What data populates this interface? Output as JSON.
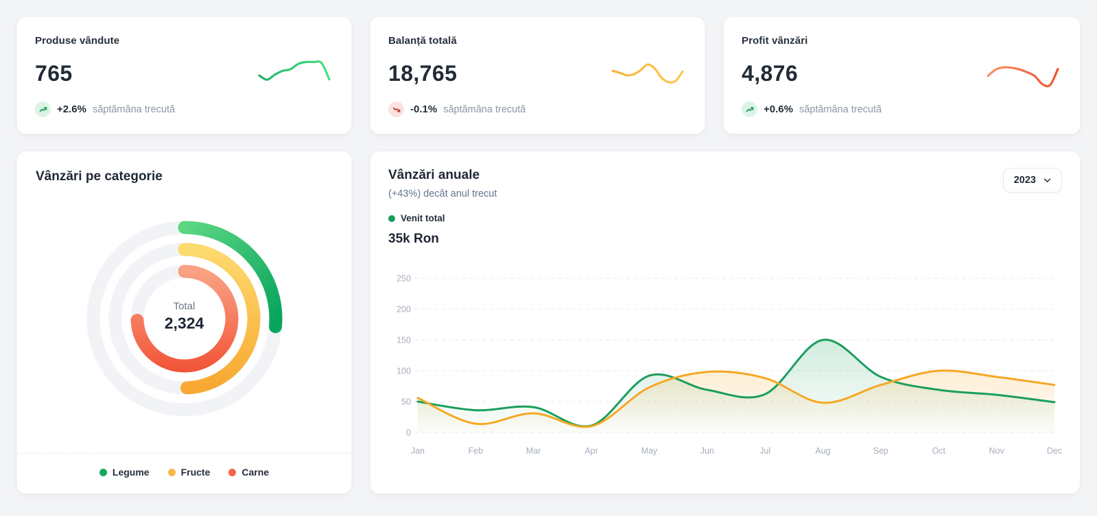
{
  "page": {
    "background": "#f3f4f6"
  },
  "stat_cards": [
    {
      "title": "Produse vândute",
      "value": "765",
      "delta": "+2.6%",
      "note": "săptămâna trecută",
      "direction": "up"
    },
    {
      "title": "Balanță totală",
      "value": "18,765",
      "delta": "-0.1%",
      "note": "săptămâna trecută",
      "direction": "down"
    },
    {
      "title": "Profit vânzări",
      "value": "4,876",
      "delta": "+0.6%",
      "note": "săptămâna trecută",
      "direction": "up"
    }
  ],
  "category_card": {
    "title": "Vânzări pe categorie",
    "center_label": "Total",
    "center_value": "2,324",
    "legend": [
      {
        "label": "Legume",
        "color": "#16a75c"
      },
      {
        "label": "Fructe",
        "color": "#fbb742"
      },
      {
        "label": "Carne",
        "color": "#f4654a"
      }
    ]
  },
  "annual_card": {
    "title": "Vânzări anuale",
    "subtitle": "(+43%) decât anul trecut",
    "legend_label": "Venit total",
    "big_value": "35k Ron",
    "year": "2023"
  },
  "colors": {
    "badge_up_arrow": "#169a4e",
    "badge_down_arrow": "#c43a2c",
    "grid_line": "#e5e8ed",
    "axis_label": "#a5adba",
    "track_ring": "#f2f3f6"
  },
  "chart_data": [
    {
      "id": "category-radial",
      "type": "radial-bar",
      "title": "Vânzări pe categorie",
      "center_label": "Total",
      "center_value": "2,324",
      "start_angle_deg": 0,
      "series": [
        {
          "name": "Legume",
          "sweep_deg": 95,
          "percent_est": 26,
          "color_start": "#5cd683",
          "color_end": "#09a55e"
        },
        {
          "name": "Fructe",
          "sweep_deg": 178,
          "percent_est": 49,
          "color_start": "#fdda6e",
          "color_end": "#f8a832"
        },
        {
          "name": "Carne",
          "sweep_deg": 268,
          "percent_est": 74,
          "color_start": "#faa184",
          "color_end": "#f14a2e"
        }
      ]
    },
    {
      "id": "annual-area",
      "type": "area",
      "title": "Vânzări anuale",
      "categories": [
        "Jan",
        "Feb",
        "Mar",
        "Apr",
        "May",
        "Jun",
        "Jul",
        "Aug",
        "Sep",
        "Oct",
        "Nov",
        "Dec"
      ],
      "yticks": [
        0,
        50,
        100,
        150,
        200,
        250
      ],
      "ylim": [
        0,
        250
      ],
      "grid": "horizontal-dashed",
      "legend_position": "top-left",
      "series": [
        {
          "name": "Venit total",
          "color": "#1a9e5c",
          "values": [
            50,
            36,
            41,
            11,
            92,
            69,
            62,
            150,
            90,
            69,
            61,
            49
          ]
        },
        {
          "name": "",
          "color": "#f6a723",
          "values": [
            56,
            14,
            31,
            10,
            73,
            98,
            88,
            48,
            77,
            100,
            90,
            77
          ]
        }
      ]
    },
    {
      "id": "spark-produse",
      "type": "sparkline",
      "color_start": "#23b36b",
      "color_end": "#49df83",
      "values": [
        45,
        32,
        48,
        60,
        65,
        82,
        88,
        88,
        85,
        33
      ]
    },
    {
      "id": "spark-balanta",
      "type": "sparkline",
      "color_start": "#f9b237",
      "color_end": "#fcc94e",
      "values": [
        60,
        54,
        46,
        49,
        62,
        80,
        68,
        38,
        24,
        28,
        58
      ]
    },
    {
      "id": "spark-profit",
      "type": "sparkline",
      "color_start": "#f9916a",
      "color_end": "#f2512e",
      "values": [
        44,
        64,
        71,
        70,
        65,
        56,
        44,
        18,
        15,
        66
      ]
    }
  ]
}
